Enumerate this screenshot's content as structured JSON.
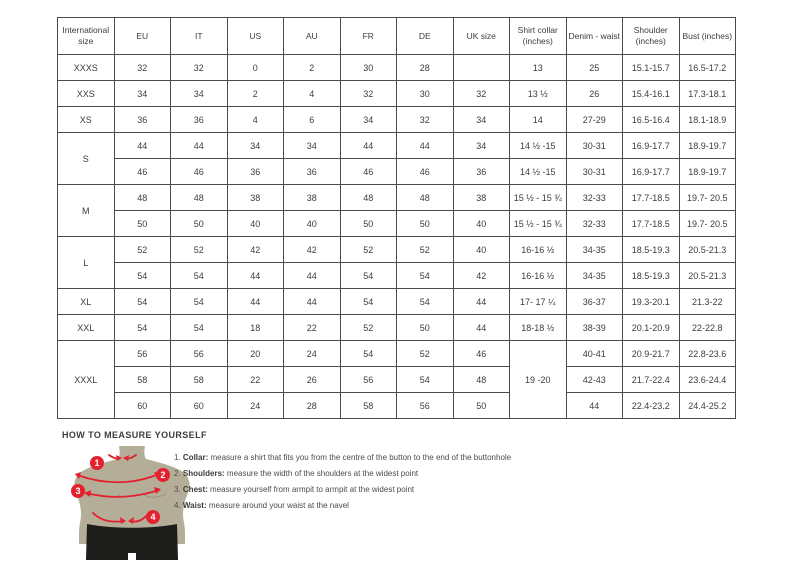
{
  "size_chart": {
    "columns": [
      "International size",
      "EU",
      "IT",
      "US",
      "AU",
      "FR",
      "DE",
      "UK size",
      "Shirt collar (inches)",
      "Denim - waist",
      "Shoulder (inches)",
      "Bust (inches)"
    ],
    "rows": [
      [
        "XXXS",
        "32",
        "32",
        "0",
        "2",
        "30",
        "28",
        "",
        "13",
        "25",
        "15.1-15.7",
        "16.5-17.2"
      ],
      [
        "XXS",
        "34",
        "34",
        "2",
        "4",
        "32",
        "30",
        "32",
        "13 ½",
        "26",
        "15.4-16.1",
        "17.3-18.1"
      ],
      [
        "XS",
        "36",
        "36",
        "4",
        "6",
        "34",
        "32",
        "34",
        "14",
        "27-29",
        "16.5-16.4",
        "18.1-18.9"
      ],
      [
        {
          "t": "S",
          "rs": 2
        },
        "44",
        "44",
        "34",
        "34",
        "44",
        "44",
        "34",
        "14 ½ -15",
        "30-31",
        "16.9-17.7",
        "18.9-19.7"
      ],
      [
        null,
        "46",
        "46",
        "36",
        "36",
        "46",
        "46",
        "36",
        "14 ½ -15",
        "30-31",
        "16.9-17.7",
        "18.9-19.7"
      ],
      [
        {
          "t": "M",
          "rs": 2
        },
        "48",
        "48",
        "38",
        "38",
        "48",
        "48",
        "38",
        "15 ½ - 15 ¾",
        "32-33",
        "17.7-18.5",
        "19.7- 20.5"
      ],
      [
        null,
        "50",
        "50",
        "40",
        "40",
        "50",
        "50",
        "40",
        "15 ½ - 15 ¾",
        "32-33",
        "17.7-18.5",
        "19.7- 20.5"
      ],
      [
        {
          "t": "L",
          "rs": 2
        },
        "52",
        "52",
        "42",
        "42",
        "52",
        "52",
        "40",
        "16-16 ½",
        "34-35",
        "18.5-19.3",
        "20.5-21.3"
      ],
      [
        null,
        "54",
        "54",
        "44",
        "44",
        "54",
        "54",
        "42",
        "16-16 ½",
        "34-35",
        "18.5-19.3",
        "20.5-21.3"
      ],
      [
        "XL",
        "54",
        "54",
        "44",
        "44",
        "54",
        "54",
        "44",
        "17- 17 ¼",
        "36-37",
        "19.3-20.1",
        "21.3-22"
      ],
      [
        "XXL",
        "54",
        "54",
        "18",
        "22",
        "52",
        "50",
        "44",
        "18-18 ½",
        "38-39",
        "20.1-20.9",
        "22-22.8"
      ],
      [
        {
          "t": "XXXL",
          "rs": 3
        },
        "56",
        "56",
        "20",
        "24",
        "54",
        "52",
        "46",
        {
          "t": "19 -20",
          "rs": 3
        },
        "40-41",
        "20.9-21.7",
        "22.8-23.6"
      ],
      [
        null,
        "58",
        "58",
        "22",
        "26",
        "56",
        "54",
        "48",
        null,
        "42-43",
        "21.7-22.4",
        "23.6-24.4"
      ],
      [
        null,
        "60",
        "60",
        "24",
        "28",
        "58",
        "56",
        "50",
        null,
        "44",
        "22.4-23.2",
        "24.4-25.2"
      ]
    ]
  },
  "how_to": {
    "heading": "HOW TO MEASURE YOURSELF",
    "items": [
      {
        "num": "1.",
        "label": "Collar:",
        "text": "measure a shirt that fits you from the centre of the button to the end of the buttonhole"
      },
      {
        "num": "2.",
        "label": "Shoulders:",
        "text": "measure the width of the shoulders at the widest point"
      },
      {
        "num": "3.",
        "label": "Chest:",
        "text": "measure yourself from armpit to armpit at the widest point"
      },
      {
        "num": "4.",
        "label": "Waist:",
        "text": "measure around your waist at the navel"
      }
    ],
    "badges": [
      "1",
      "2",
      "3",
      "4"
    ]
  },
  "colors": {
    "accent_red": "#e4212e",
    "torso_tan": "#b4ae99",
    "shorts_black": "#1d1d1b",
    "border_gray": "#4c4c4c",
    "text_dark": "#3c3c3c"
  }
}
